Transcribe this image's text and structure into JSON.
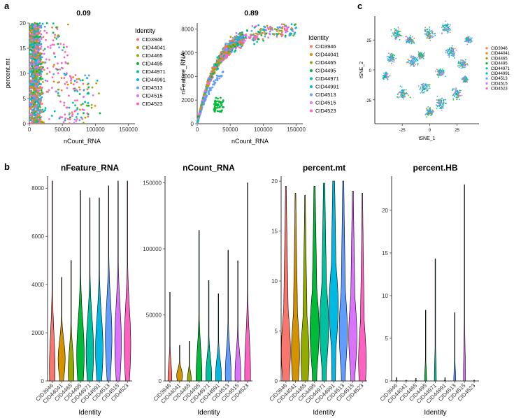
{
  "panel_labels": {
    "a": "a",
    "b": "b",
    "c": "c"
  },
  "identities": [
    "CID3946",
    "CID44041",
    "CID4465",
    "CID4495",
    "CID44971",
    "CID44991",
    "CID4513",
    "CID4515",
    "CID4523"
  ],
  "colors": [
    "#F8766D",
    "#D39200",
    "#93AA00",
    "#00BA38",
    "#00C19F",
    "#00B9E3",
    "#619CFF",
    "#DB72FB",
    "#FF61C3"
  ],
  "chart_data": [
    {
      "type": "scatter",
      "id": "scatter-mt",
      "title": "0.09",
      "xlabel": "nCount_RNA",
      "ylabel": "percent.mt",
      "xlim": [
        0,
        160000
      ],
      "ylim": [
        0,
        20
      ],
      "xticks": [
        0,
        50000,
        100000,
        150000
      ],
      "xtick_labels": [
        "0",
        "50000",
        "100000",
        "150000"
      ],
      "yticks": [
        0,
        5,
        10,
        15,
        20
      ],
      "ytick_labels": [
        "0",
        "5",
        "10",
        "15",
        "20"
      ],
      "legend_title": "Identity",
      "legend": "right",
      "points_desc": "dense cloud below 50000 nCount_RNA across 0-20 percent.mt, sparse tail to 150000"
    },
    {
      "type": "scatter",
      "id": "scatter-feat",
      "title": "0.89",
      "xlabel": "nCount_RNA",
      "ylabel": "nFeature_RNA",
      "xlim": [
        0,
        160000
      ],
      "ylim": [
        0,
        8500
      ],
      "xticks": [
        0,
        50000,
        100000,
        150000
      ],
      "xtick_labels": [
        "0",
        "50000",
        "100000",
        "150000"
      ],
      "yticks": [
        0,
        2000,
        4000,
        6000,
        8000
      ],
      "ytick_labels": [
        "0",
        "2000",
        "4000",
        "6000",
        "8000"
      ],
      "legend_title": "Identity",
      "legend": "right",
      "points_desc": "saturating curve rising from 0 to about 8000 nFeature by 150000 nCount"
    },
    {
      "type": "scatter",
      "id": "tsne",
      "title": "",
      "xlabel": "tSNE_1",
      "ylabel": "tSNE_2",
      "xlim": [
        -50,
        45
      ],
      "ylim": [
        -45,
        45
      ],
      "xticks": [
        -25,
        0,
        25
      ],
      "xtick_labels": [
        "-25",
        "0",
        "25"
      ],
      "yticks": [
        -25,
        0,
        25
      ],
      "ytick_labels": [
        "-25",
        "0",
        "25"
      ],
      "legend": "right"
    },
    {
      "type": "violin",
      "id": "violin-feature",
      "title": "nFeature_RNA",
      "xlabel": "Identity",
      "ylabel": "",
      "ylim": [
        0,
        8500
      ],
      "yticks": [
        0,
        2000,
        4000,
        6000,
        8000
      ],
      "ytick_labels": [
        "0",
        "2000",
        "4000",
        "6000",
        "8000"
      ],
      "series": [
        {
          "name": "CID3946",
          "max": 8300,
          "center": 500,
          "width": 0.6
        },
        {
          "name": "CID44041",
          "max": 4300,
          "center": 900,
          "width": 0.75
        },
        {
          "name": "CID4465",
          "max": 5000,
          "center": 400,
          "width": 0.6
        },
        {
          "name": "CID4495",
          "max": 7900,
          "center": 1100,
          "width": 0.8
        },
        {
          "name": "CID44971",
          "max": 7600,
          "center": 1200,
          "width": 0.8
        },
        {
          "name": "CID44991",
          "max": 7600,
          "center": 1300,
          "width": 0.8
        },
        {
          "name": "CID4513",
          "max": 8100,
          "center": 1800,
          "width": 0.7
        },
        {
          "name": "CID4515",
          "max": 8300,
          "center": 1600,
          "width": 0.7
        },
        {
          "name": "CID4523",
          "max": 8300,
          "center": 1500,
          "width": 0.7
        }
      ]
    },
    {
      "type": "violin",
      "id": "violin-count",
      "title": "nCount_RNA",
      "xlabel": "Identity",
      "ylabel": "",
      "ylim": [
        0,
        155000
      ],
      "yticks": [
        0,
        50000,
        100000,
        150000
      ],
      "ytick_labels": [
        "0",
        "50000",
        "100000",
        "150000"
      ],
      "series": [
        {
          "name": "CID3946",
          "max": 67000,
          "center": 1500,
          "width": 0.4
        },
        {
          "name": "CID44041",
          "max": 27000,
          "center": 4000,
          "width": 0.6
        },
        {
          "name": "CID4465",
          "max": 30000,
          "center": 1500,
          "width": 0.4
        },
        {
          "name": "CID4495",
          "max": 114000,
          "center": 3500,
          "width": 0.6
        },
        {
          "name": "CID44971",
          "max": 76000,
          "center": 3500,
          "width": 0.6
        },
        {
          "name": "CID44991",
          "max": 66000,
          "center": 4000,
          "width": 0.6
        },
        {
          "name": "CID4513",
          "max": 99000,
          "center": 5000,
          "width": 0.6
        },
        {
          "name": "CID4515",
          "max": 91000,
          "center": 4500,
          "width": 0.6
        },
        {
          "name": "CID4523",
          "max": 150000,
          "center": 6000,
          "width": 0.6
        }
      ]
    },
    {
      "type": "violin",
      "id": "violin-mt",
      "title": "percent.mt",
      "xlabel": "Identity",
      "ylabel": "",
      "ylim": [
        0,
        20.5
      ],
      "yticks": [
        0,
        5,
        10,
        15,
        20
      ],
      "ytick_labels": [
        "0",
        "5",
        "10",
        "15",
        "20"
      ],
      "series": [
        {
          "name": "CID3946",
          "max": 19.5,
          "center": 3.0,
          "width": 0.95
        },
        {
          "name": "CID44041",
          "max": 18.8,
          "center": 2.8,
          "width": 0.85
        },
        {
          "name": "CID4465",
          "max": 18.6,
          "center": 2.5,
          "width": 0.85
        },
        {
          "name": "CID4495",
          "max": 19.5,
          "center": 5.0,
          "width": 0.95
        },
        {
          "name": "CID44971",
          "max": 19.8,
          "center": 5.5,
          "width": 0.95
        },
        {
          "name": "CID44991",
          "max": 20.0,
          "center": 7.5,
          "width": 0.95
        },
        {
          "name": "CID4513",
          "max": 20.0,
          "center": 5.0,
          "width": 0.85
        },
        {
          "name": "CID4515",
          "max": 19.0,
          "center": 4.5,
          "width": 0.85
        },
        {
          "name": "CID4523",
          "max": 18.8,
          "center": 2.0,
          "width": 0.8
        }
      ]
    },
    {
      "type": "violin",
      "id": "violin-hb",
      "title": "percent.HB",
      "xlabel": "Identity",
      "ylabel": "",
      "ylim": [
        0,
        24
      ],
      "yticks": [
        0,
        5,
        10,
        15,
        20
      ],
      "ytick_labels": [
        "0",
        "5",
        "10",
        "15",
        "20"
      ],
      "series": [
        {
          "name": "CID3946",
          "max": 0.4,
          "center": 0,
          "width": 0.2
        },
        {
          "name": "CID44041",
          "max": 0.1,
          "center": 0,
          "width": 0.2
        },
        {
          "name": "CID4465",
          "max": 0.3,
          "center": 0,
          "width": 0.2
        },
        {
          "name": "CID4495",
          "max": 8.3,
          "center": 0,
          "width": 0.2
        },
        {
          "name": "CID44971",
          "max": 14.3,
          "center": 0,
          "width": 0.2
        },
        {
          "name": "CID44991",
          "max": 0.4,
          "center": 0,
          "width": 0.2
        },
        {
          "name": "CID4513",
          "max": 8.0,
          "center": 0,
          "width": 0.2
        },
        {
          "name": "CID4515",
          "max": 23.0,
          "center": 0,
          "width": 0.2
        },
        {
          "name": "CID4523",
          "max": 0.1,
          "center": 0,
          "width": 0.2
        }
      ]
    }
  ]
}
